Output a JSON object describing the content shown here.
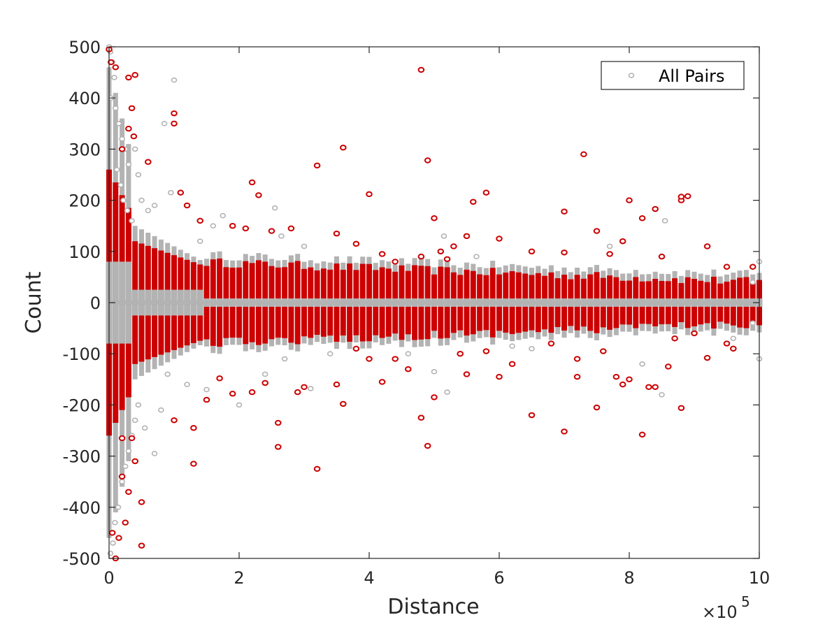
{
  "chart_data": {
    "type": "scatter",
    "title": "",
    "xlabel": "Distance",
    "ylabel": "Count",
    "x_exponent_label": "×10",
    "x_exponent_power": "5",
    "xlim": [
      0,
      1000000
    ],
    "ylim": [
      -500,
      500
    ],
    "x_ticks": [
      0,
      200000,
      400000,
      600000,
      800000,
      1000000
    ],
    "x_tick_labels": [
      "0",
      "2",
      "4",
      "6",
      "8",
      "10"
    ],
    "y_ticks": [
      500,
      400,
      300,
      200,
      100,
      0,
      -100,
      -200,
      -300,
      -400,
      -500
    ],
    "y_tick_labels": [
      "500",
      "400",
      "300",
      "200",
      "100",
      "0",
      "-100",
      "-200",
      "-300",
      "-400",
      "-500"
    ],
    "grid": false,
    "legend": {
      "position": "top-right",
      "entries": [
        "All Pairs"
      ]
    },
    "colors": {
      "all_pairs": "#b3b3b3",
      "highlighted": "#cc0000",
      "axis": "#262626"
    },
    "series": [
      {
        "name": "All Pairs",
        "color": "#b3b3b3",
        "points": [
          [
            0,
            500
          ],
          [
            2000,
            490
          ],
          [
            5000,
            470
          ],
          [
            8000,
            440
          ],
          [
            3000,
            400
          ],
          [
            10000,
            380
          ],
          [
            15000,
            350
          ],
          [
            20000,
            320
          ],
          [
            25000,
            300
          ],
          [
            30000,
            270
          ],
          [
            12000,
            260
          ],
          [
            18000,
            230
          ],
          [
            22000,
            200
          ],
          [
            28000,
            180
          ],
          [
            35000,
            160
          ],
          [
            50000,
            200
          ],
          [
            60000,
            180
          ],
          [
            70000,
            190
          ],
          [
            85000,
            350
          ],
          [
            95000,
            215
          ],
          [
            100000,
            435
          ],
          [
            40000,
            300
          ],
          [
            45000,
            250
          ],
          [
            140000,
            120
          ],
          [
            160000,
            150
          ],
          [
            175000,
            170
          ],
          [
            255000,
            185
          ],
          [
            265000,
            130
          ],
          [
            300000,
            110
          ],
          [
            515000,
            130
          ],
          [
            565000,
            90
          ],
          [
            770000,
            110
          ],
          [
            855000,
            160
          ],
          [
            1000000,
            80
          ],
          [
            990000,
            40
          ],
          [
            2000,
            -490
          ],
          [
            6000,
            -470
          ],
          [
            9000,
            -430
          ],
          [
            14000,
            -400
          ],
          [
            20000,
            -350
          ],
          [
            25000,
            -320
          ],
          [
            30000,
            -290
          ],
          [
            35000,
            -260
          ],
          [
            40000,
            -230
          ],
          [
            45000,
            -200
          ],
          [
            55000,
            -245
          ],
          [
            70000,
            -295
          ],
          [
            80000,
            -210
          ],
          [
            90000,
            -140
          ],
          [
            120000,
            -160
          ],
          [
            150000,
            -170
          ],
          [
            200000,
            -200
          ],
          [
            240000,
            -140
          ],
          [
            270000,
            -110
          ],
          [
            310000,
            -168
          ],
          [
            340000,
            -100
          ],
          [
            460000,
            -100
          ],
          [
            500000,
            -135
          ],
          [
            520000,
            -175
          ],
          [
            620000,
            -85
          ],
          [
            650000,
            -90
          ],
          [
            820000,
            -120
          ],
          [
            850000,
            -180
          ],
          [
            960000,
            -70
          ],
          [
            1000000,
            -110
          ],
          [
            990000,
            -40
          ]
        ]
      },
      {
        "name": "",
        "color": "#cc0000",
        "points": [
          [
            0,
            495
          ],
          [
            3000,
            470
          ],
          [
            10000,
            460
          ],
          [
            30000,
            440
          ],
          [
            40000,
            445
          ],
          [
            35000,
            380
          ],
          [
            30000,
            340
          ],
          [
            38000,
            325
          ],
          [
            20000,
            300
          ],
          [
            60000,
            275
          ],
          [
            100000,
            370
          ],
          [
            100000,
            350
          ],
          [
            110000,
            215
          ],
          [
            120000,
            190
          ],
          [
            220000,
            235
          ],
          [
            230000,
            210
          ],
          [
            320000,
            268
          ],
          [
            360000,
            303
          ],
          [
            400000,
            212
          ],
          [
            480000,
            455
          ],
          [
            490000,
            278
          ],
          [
            560000,
            197
          ],
          [
            580000,
            215
          ],
          [
            730000,
            290
          ],
          [
            700000,
            178
          ],
          [
            800000,
            200
          ],
          [
            820000,
            165
          ],
          [
            840000,
            183
          ],
          [
            880000,
            200
          ],
          [
            890000,
            208
          ],
          [
            880000,
            207
          ],
          [
            500000,
            165
          ],
          [
            550000,
            130
          ],
          [
            600000,
            125
          ],
          [
            650000,
            100
          ],
          [
            700000,
            98
          ],
          [
            750000,
            140
          ],
          [
            770000,
            95
          ],
          [
            790000,
            120
          ],
          [
            850000,
            90
          ],
          [
            920000,
            110
          ],
          [
            950000,
            70
          ],
          [
            990000,
            70
          ],
          [
            140000,
            160
          ],
          [
            190000,
            150
          ],
          [
            210000,
            145
          ],
          [
            250000,
            140
          ],
          [
            280000,
            145
          ],
          [
            350000,
            135
          ],
          [
            380000,
            115
          ],
          [
            420000,
            95
          ],
          [
            440000,
            80
          ],
          [
            480000,
            90
          ],
          [
            510000,
            100
          ],
          [
            520000,
            85
          ],
          [
            530000,
            110
          ],
          [
            10000,
            -500
          ],
          [
            5000,
            -450
          ],
          [
            15000,
            -460
          ],
          [
            25000,
            -430
          ],
          [
            30000,
            -370
          ],
          [
            50000,
            -475
          ],
          [
            50000,
            -390
          ],
          [
            20000,
            -340
          ],
          [
            20000,
            -265
          ],
          [
            40000,
            -310
          ],
          [
            35000,
            -265
          ],
          [
            100000,
            -230
          ],
          [
            130000,
            -245
          ],
          [
            130000,
            -315
          ],
          [
            150000,
            -190
          ],
          [
            170000,
            -148
          ],
          [
            190000,
            -178
          ],
          [
            220000,
            -175
          ],
          [
            240000,
            -157
          ],
          [
            260000,
            -235
          ],
          [
            260000,
            -282
          ],
          [
            290000,
            -175
          ],
          [
            300000,
            -165
          ],
          [
            320000,
            -325
          ],
          [
            350000,
            -160
          ],
          [
            360000,
            -198
          ],
          [
            420000,
            -155
          ],
          [
            440000,
            -110
          ],
          [
            480000,
            -225
          ],
          [
            490000,
            -280
          ],
          [
            500000,
            -185
          ],
          [
            550000,
            -140
          ],
          [
            600000,
            -145
          ],
          [
            620000,
            -120
          ],
          [
            650000,
            -220
          ],
          [
            700000,
            -252
          ],
          [
            720000,
            -145
          ],
          [
            750000,
            -205
          ],
          [
            780000,
            -145
          ],
          [
            790000,
            -160
          ],
          [
            800000,
            -150
          ],
          [
            820000,
            -258
          ],
          [
            830000,
            -165
          ],
          [
            840000,
            -165
          ],
          [
            860000,
            -125
          ],
          [
            880000,
            -206
          ],
          [
            920000,
            -108
          ],
          [
            950000,
            -80
          ],
          [
            960000,
            -90
          ],
          [
            400000,
            -110
          ],
          [
            380000,
            -90
          ],
          [
            460000,
            -130
          ],
          [
            540000,
            -100
          ],
          [
            580000,
            -95
          ],
          [
            680000,
            -80
          ],
          [
            720000,
            -110
          ],
          [
            760000,
            -95
          ],
          [
            870000,
            -70
          ],
          [
            900000,
            -60
          ]
        ]
      }
    ]
  }
}
